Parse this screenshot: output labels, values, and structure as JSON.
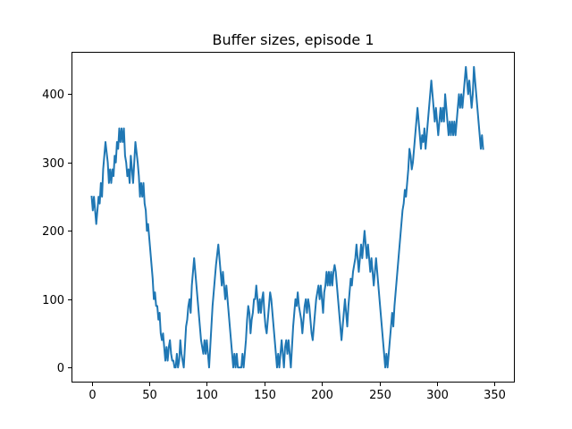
{
  "chart_data": {
    "type": "line",
    "title": "Buffer sizes, episode 1",
    "xlabel": "",
    "ylabel": "",
    "xlim": [
      -17.5,
      367.5
    ],
    "ylim": [
      -22,
      462
    ],
    "xticks": [
      0,
      50,
      100,
      150,
      200,
      250,
      300,
      350
    ],
    "yticks": [
      0,
      100,
      200,
      300,
      400
    ],
    "grid": false,
    "color": "#1f77b4",
    "series": [
      {
        "points": [
          [
            0,
            250
          ],
          [
            1,
            230
          ],
          [
            2,
            250
          ],
          [
            4,
            210
          ],
          [
            6,
            250
          ],
          [
            7,
            240
          ],
          [
            8,
            270
          ],
          [
            9,
            250
          ],
          [
            10,
            290
          ],
          [
            12,
            330
          ],
          [
            14,
            300
          ],
          [
            15,
            270
          ],
          [
            16,
            290
          ],
          [
            17,
            270
          ],
          [
            18,
            290
          ],
          [
            19,
            280
          ],
          [
            20,
            310
          ],
          [
            21,
            300
          ],
          [
            22,
            330
          ],
          [
            23,
            320
          ],
          [
            24,
            350
          ],
          [
            25,
            330
          ],
          [
            26,
            350
          ],
          [
            27,
            330
          ],
          [
            28,
            350
          ],
          [
            29,
            310
          ],
          [
            30,
            300
          ],
          [
            31,
            280
          ],
          [
            32,
            290
          ],
          [
            33,
            270
          ],
          [
            34,
            310
          ],
          [
            35,
            290
          ],
          [
            36,
            270
          ],
          [
            38,
            330
          ],
          [
            40,
            300
          ],
          [
            41,
            280
          ],
          [
            42,
            250
          ],
          [
            43,
            270
          ],
          [
            44,
            250
          ],
          [
            45,
            270
          ],
          [
            46,
            240
          ],
          [
            47,
            230
          ],
          [
            48,
            200
          ],
          [
            49,
            210
          ],
          [
            50,
            190
          ],
          [
            51,
            170
          ],
          [
            52,
            150
          ],
          [
            53,
            130
          ],
          [
            54,
            100
          ],
          [
            55,
            110
          ],
          [
            56,
            90
          ],
          [
            57,
            90
          ],
          [
            58,
            70
          ],
          [
            59,
            80
          ],
          [
            60,
            50
          ],
          [
            61,
            40
          ],
          [
            62,
            50
          ],
          [
            63,
            30
          ],
          [
            64,
            10
          ],
          [
            65,
            30
          ],
          [
            66,
            10
          ],
          [
            67,
            30
          ],
          [
            68,
            40
          ],
          [
            69,
            20
          ],
          [
            70,
            10
          ],
          [
            71,
            10
          ],
          [
            72,
            0
          ],
          [
            73,
            0
          ],
          [
            74,
            20
          ],
          [
            75,
            0
          ],
          [
            76,
            10
          ],
          [
            77,
            40
          ],
          [
            78,
            20
          ],
          [
            79,
            10
          ],
          [
            80,
            0
          ],
          [
            81,
            30
          ],
          [
            82,
            60
          ],
          [
            83,
            70
          ],
          [
            84,
            90
          ],
          [
            85,
            100
          ],
          [
            86,
            80
          ],
          [
            87,
            120
          ],
          [
            89,
            160
          ],
          [
            91,
            120
          ],
          [
            92,
            100
          ],
          [
            93,
            80
          ],
          [
            94,
            60
          ],
          [
            95,
            40
          ],
          [
            96,
            30
          ],
          [
            97,
            20
          ],
          [
            98,
            40
          ],
          [
            99,
            20
          ],
          [
            100,
            40
          ],
          [
            101,
            20
          ],
          [
            102,
            0
          ],
          [
            103,
            30
          ],
          [
            104,
            60
          ],
          [
            105,
            90
          ],
          [
            106,
            110
          ],
          [
            107,
            130
          ],
          [
            108,
            150
          ],
          [
            110,
            180
          ],
          [
            112,
            140
          ],
          [
            113,
            120
          ],
          [
            114,
            140
          ],
          [
            115,
            120
          ],
          [
            116,
            100
          ],
          [
            117,
            120
          ],
          [
            118,
            100
          ],
          [
            119,
            80
          ],
          [
            120,
            60
          ],
          [
            121,
            40
          ],
          [
            122,
            20
          ],
          [
            123,
            0
          ],
          [
            124,
            20
          ],
          [
            125,
            0
          ],
          [
            126,
            20
          ],
          [
            127,
            0
          ],
          [
            128,
            0
          ],
          [
            129,
            0
          ],
          [
            130,
            0
          ],
          [
            131,
            20
          ],
          [
            132,
            0
          ],
          [
            133,
            20
          ],
          [
            134,
            40
          ],
          [
            135,
            70
          ],
          [
            136,
            90
          ],
          [
            137,
            80
          ],
          [
            138,
            50
          ],
          [
            139,
            70
          ],
          [
            140,
            80
          ],
          [
            141,
            100
          ],
          [
            142,
            100
          ],
          [
            143,
            120
          ],
          [
            144,
            100
          ],
          [
            145,
            80
          ],
          [
            146,
            100
          ],
          [
            147,
            80
          ],
          [
            148,
            100
          ],
          [
            149,
            110
          ],
          [
            150,
            80
          ],
          [
            151,
            60
          ],
          [
            152,
            50
          ],
          [
            153,
            70
          ],
          [
            154,
            90
          ],
          [
            155,
            110
          ],
          [
            156,
            100
          ],
          [
            157,
            80
          ],
          [
            158,
            60
          ],
          [
            159,
            40
          ],
          [
            160,
            20
          ],
          [
            161,
            0
          ],
          [
            162,
            20
          ],
          [
            163,
            0
          ],
          [
            164,
            20
          ],
          [
            165,
            40
          ],
          [
            166,
            20
          ],
          [
            167,
            0
          ],
          [
            168,
            30
          ],
          [
            169,
            40
          ],
          [
            170,
            20
          ],
          [
            171,
            40
          ],
          [
            172,
            20
          ],
          [
            173,
            0
          ],
          [
            174,
            30
          ],
          [
            175,
            60
          ],
          [
            176,
            80
          ],
          [
            177,
            100
          ],
          [
            178,
            90
          ],
          [
            179,
            110
          ],
          [
            180,
            90
          ],
          [
            181,
            80
          ],
          [
            182,
            70
          ],
          [
            183,
            50
          ],
          [
            184,
            70
          ],
          [
            185,
            90
          ],
          [
            186,
            100
          ],
          [
            187,
            80
          ],
          [
            188,
            100
          ],
          [
            189,
            90
          ],
          [
            190,
            70
          ],
          [
            191,
            50
          ],
          [
            192,
            40
          ],
          [
            193,
            60
          ],
          [
            194,
            80
          ],
          [
            195,
            100
          ],
          [
            196,
            110
          ],
          [
            197,
            120
          ],
          [
            198,
            100
          ],
          [
            199,
            120
          ],
          [
            200,
            100
          ],
          [
            201,
            80
          ],
          [
            202,
            110
          ],
          [
            203,
            120
          ],
          [
            204,
            140
          ],
          [
            205,
            120
          ],
          [
            206,
            140
          ],
          [
            207,
            120
          ],
          [
            208,
            140
          ],
          [
            209,
            120
          ],
          [
            210,
            140
          ],
          [
            211,
            150
          ],
          [
            212,
            140
          ],
          [
            213,
            120
          ],
          [
            214,
            100
          ],
          [
            215,
            80
          ],
          [
            216,
            60
          ],
          [
            217,
            40
          ],
          [
            218,
            60
          ],
          [
            219,
            80
          ],
          [
            220,
            100
          ],
          [
            221,
            80
          ],
          [
            222,
            60
          ],
          [
            223,
            90
          ],
          [
            224,
            110
          ],
          [
            225,
            130
          ],
          [
            226,
            120
          ],
          [
            227,
            140
          ],
          [
            228,
            150
          ],
          [
            229,
            160
          ],
          [
            230,
            180
          ],
          [
            231,
            160
          ],
          [
            232,
            140
          ],
          [
            233,
            160
          ],
          [
            234,
            180
          ],
          [
            235,
            160
          ],
          [
            236,
            180
          ],
          [
            237,
            200
          ],
          [
            238,
            180
          ],
          [
            239,
            160
          ],
          [
            240,
            180
          ],
          [
            241,
            160
          ],
          [
            242,
            140
          ],
          [
            243,
            160
          ],
          [
            244,
            140
          ],
          [
            245,
            120
          ],
          [
            246,
            140
          ],
          [
            247,
            160
          ],
          [
            248,
            140
          ],
          [
            249,
            120
          ],
          [
            250,
            100
          ],
          [
            251,
            80
          ],
          [
            252,
            60
          ],
          [
            253,
            40
          ],
          [
            254,
            20
          ],
          [
            255,
            0
          ],
          [
            256,
            20
          ],
          [
            257,
            0
          ],
          [
            258,
            20
          ],
          [
            259,
            40
          ],
          [
            260,
            60
          ],
          [
            261,
            80
          ],
          [
            262,
            60
          ],
          [
            263,
            90
          ],
          [
            264,
            110
          ],
          [
            265,
            130
          ],
          [
            266,
            150
          ],
          [
            267,
            170
          ],
          [
            268,
            190
          ],
          [
            269,
            210
          ],
          [
            270,
            230
          ],
          [
            271,
            240
          ],
          [
            272,
            260
          ],
          [
            273,
            250
          ],
          [
            274,
            270
          ],
          [
            275,
            290
          ],
          [
            276,
            320
          ],
          [
            277,
            310
          ],
          [
            278,
            290
          ],
          [
            279,
            300
          ],
          [
            280,
            320
          ],
          [
            281,
            340
          ],
          [
            282,
            360
          ],
          [
            283,
            380
          ],
          [
            284,
            360
          ],
          [
            285,
            340
          ],
          [
            286,
            320
          ],
          [
            287,
            340
          ],
          [
            288,
            330
          ],
          [
            289,
            350
          ],
          [
            290,
            320
          ],
          [
            291,
            340
          ],
          [
            292,
            360
          ],
          [
            293,
            380
          ],
          [
            294,
            400
          ],
          [
            295,
            420
          ],
          [
            296,
            400
          ],
          [
            297,
            380
          ],
          [
            298,
            360
          ],
          [
            299,
            380
          ],
          [
            300,
            360
          ],
          [
            301,
            340
          ],
          [
            302,
            360
          ],
          [
            303,
            380
          ],
          [
            304,
            360
          ],
          [
            305,
            380
          ],
          [
            306,
            360
          ],
          [
            307,
            400
          ],
          [
            308,
            380
          ],
          [
            309,
            360
          ],
          [
            310,
            340
          ],
          [
            311,
            360
          ],
          [
            312,
            340
          ],
          [
            313,
            360
          ],
          [
            314,
            340
          ],
          [
            315,
            360
          ],
          [
            316,
            340
          ],
          [
            317,
            360
          ],
          [
            318,
            380
          ],
          [
            319,
            400
          ],
          [
            320,
            380
          ],
          [
            321,
            400
          ],
          [
            322,
            380
          ],
          [
            323,
            400
          ],
          [
            324,
            420
          ],
          [
            325,
            440
          ],
          [
            326,
            420
          ],
          [
            327,
            400
          ],
          [
            328,
            420
          ],
          [
            329,
            400
          ],
          [
            330,
            380
          ],
          [
            331,
            400
          ],
          [
            332,
            440
          ],
          [
            333,
            420
          ],
          [
            334,
            400
          ],
          [
            335,
            380
          ],
          [
            336,
            360
          ],
          [
            337,
            340
          ],
          [
            338,
            320
          ],
          [
            339,
            340
          ],
          [
            340,
            320
          ]
        ]
      }
    ]
  }
}
